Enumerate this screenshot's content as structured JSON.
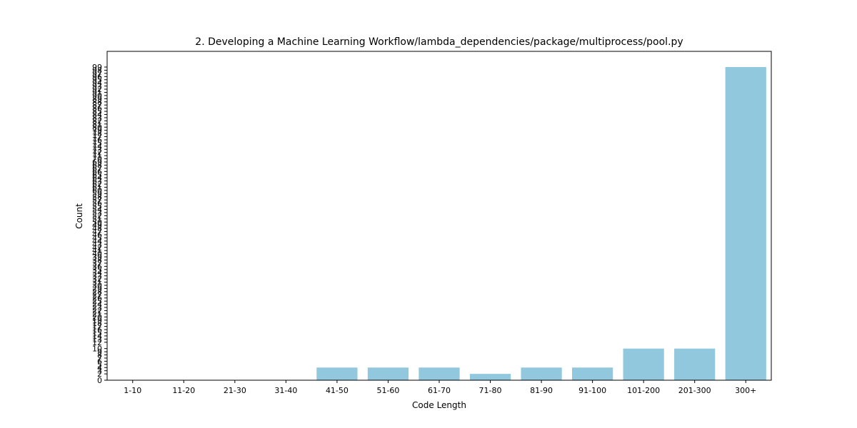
{
  "chart_data": {
    "type": "bar",
    "title": "2. Developing a Machine Learning Workflow/lambda_dependencies/package/multiprocess/pool.py",
    "xlabel": "Code Length",
    "ylabel": "Count",
    "categories": [
      "1-10",
      "11-20",
      "21-30",
      "31-40",
      "41-50",
      "51-60",
      "61-70",
      "71-80",
      "81-90",
      "91-100",
      "101-200",
      "201-300",
      "300+"
    ],
    "values": [
      0,
      0,
      0,
      0,
      4,
      4,
      4,
      2,
      4,
      4,
      10,
      10,
      99
    ],
    "yticks": [
      0,
      2,
      3,
      4,
      5,
      6,
      7,
      8,
      9,
      10,
      12,
      13,
      14,
      15,
      16,
      17,
      18,
      19,
      20,
      21,
      22,
      23,
      24,
      25,
      26,
      27,
      28,
      29,
      30,
      31,
      32,
      33,
      34,
      35,
      36,
      37,
      38,
      39,
      40,
      41,
      42,
      43,
      44,
      45,
      46,
      47,
      48,
      49,
      50,
      51,
      52,
      53,
      54,
      55,
      56,
      57,
      58,
      59,
      60,
      61,
      62,
      63,
      64,
      65,
      66,
      67,
      68,
      69,
      70,
      71,
      72,
      73,
      74,
      75,
      76,
      77,
      78,
      79,
      80,
      81,
      82,
      83,
      84,
      85,
      86,
      87,
      88,
      89,
      90,
      91,
      92,
      93,
      94,
      95,
      96,
      97,
      98,
      99
    ],
    "ylim": [
      0,
      99
    ],
    "bar_color": "#92c8de",
    "grid": false,
    "legend": "none"
  }
}
